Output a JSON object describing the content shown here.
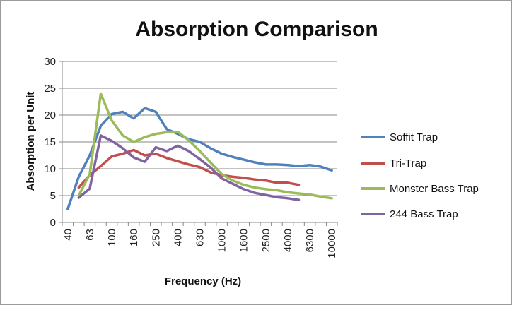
{
  "chart_data": {
    "type": "line",
    "title": "Absorption Comparison",
    "xlabel": "Frequency (Hz)",
    "ylabel": "Absorption per Unit",
    "ylim": [
      0,
      30
    ],
    "yticks": [
      0,
      5,
      10,
      15,
      20,
      25,
      30
    ],
    "grid": "horizontal",
    "legend": "right",
    "categories": [
      "40",
      "50",
      "63",
      "80",
      "100",
      "125",
      "160",
      "200",
      "250",
      "315",
      "400",
      "500",
      "630",
      "800",
      "1000",
      "1250",
      "1600",
      "2000",
      "2500",
      "3150",
      "4000",
      "5000",
      "6300",
      "8000",
      "10000"
    ],
    "tick_labels_shown": [
      "40",
      "63",
      "100",
      "160",
      "250",
      "400",
      "630",
      "1000",
      "1600",
      "2500",
      "4000",
      "6300",
      "10000"
    ],
    "series": [
      {
        "name": "Soffit Trap",
        "color": "#4f81bd",
        "values": [
          2.5,
          8.5,
          12.5,
          18,
          20.2,
          20.6,
          19.4,
          21.3,
          20.6,
          17.4,
          16.5,
          15.5,
          15,
          13.8,
          12.8,
          12.2,
          11.7,
          11.2,
          10.8,
          10.8,
          10.7,
          10.5,
          10.7,
          10.4,
          9.7
        ]
      },
      {
        "name": "Tri-Trap",
        "color": "#c0504d",
        "values": [
          null,
          6.5,
          8.8,
          10.5,
          12.3,
          12.8,
          13.5,
          12.5,
          12.8,
          12,
          11.4,
          10.8,
          10.3,
          9.3,
          8.8,
          8.5,
          8.3,
          8.0,
          7.8,
          7.4,
          7.4,
          7.0,
          null,
          null,
          null
        ]
      },
      {
        "name": "Monster Bass Trap",
        "color": "#9bbb59",
        "values": [
          null,
          5,
          9,
          24,
          19,
          16.2,
          15,
          15.9,
          16.5,
          16.8,
          16.9,
          15.3,
          13.3,
          11.1,
          9.0,
          7.8,
          7.0,
          6.5,
          6.2,
          6.0,
          5.6,
          5.4,
          5.2,
          4.8,
          4.5
        ]
      },
      {
        "name": "244 Bass Trap",
        "color": "#8064a2",
        "values": [
          null,
          4.6,
          6.3,
          16.2,
          15.2,
          13.8,
          12.1,
          11.3,
          14,
          13.3,
          14.3,
          13.3,
          11.8,
          10.2,
          8.2,
          7.2,
          6.2,
          5.5,
          5.1,
          4.7,
          4.5,
          4.2,
          null,
          null,
          null
        ]
      }
    ]
  }
}
